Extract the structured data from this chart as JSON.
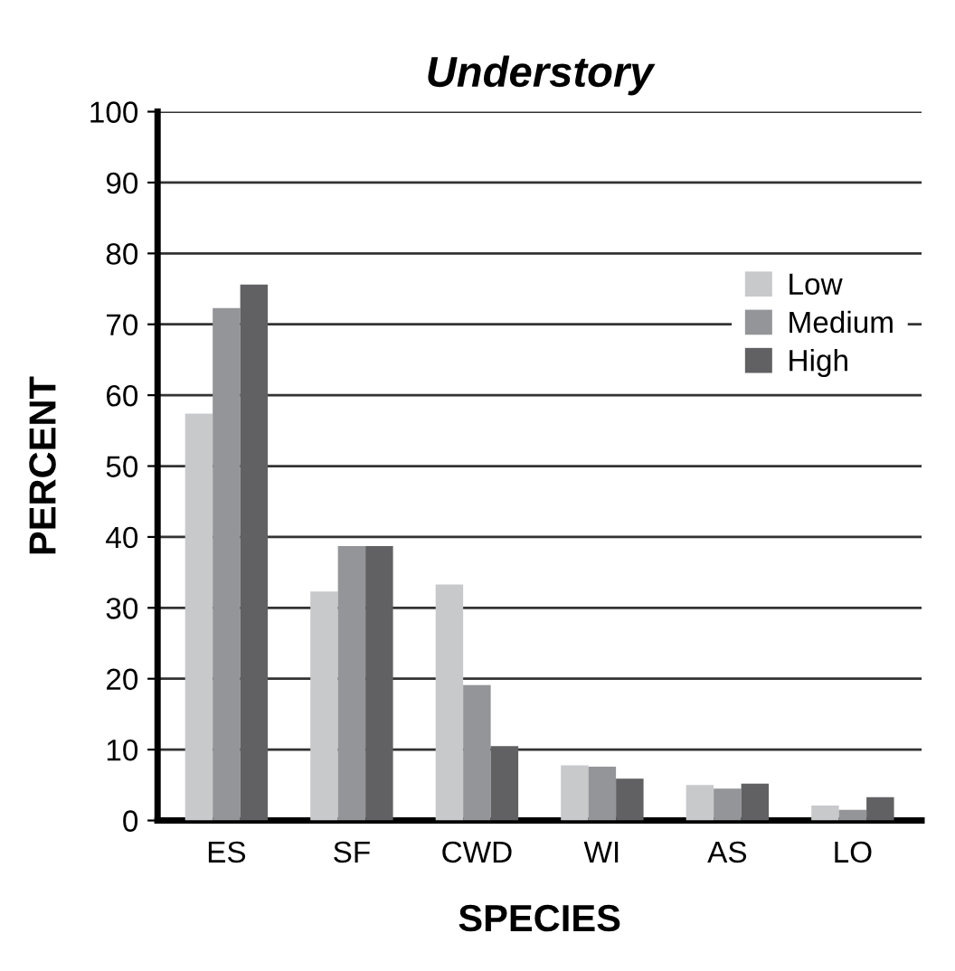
{
  "chart_data": {
    "type": "bar",
    "title": "Understory",
    "xlabel": "SPECIES",
    "ylabel": "PERCENT",
    "categories": [
      "ES",
      "SF",
      "CWD",
      "WI",
      "AS",
      "LO"
    ],
    "series": [
      {
        "name": "Low",
        "color": "#c8c9cb",
        "values": [
          57.4,
          32.3,
          33.3,
          7.8,
          5.0,
          2.1
        ]
      },
      {
        "name": "Medium",
        "color": "#939598",
        "values": [
          72.3,
          38.7,
          19.1,
          7.6,
          4.5,
          1.5
        ]
      },
      {
        "name": "High",
        "color": "#616163",
        "values": [
          75.6,
          38.7,
          10.5,
          5.9,
          5.2,
          3.3
        ]
      }
    ],
    "ylim": [
      0,
      100
    ],
    "yticks": [
      0,
      10,
      20,
      30,
      40,
      50,
      60,
      70,
      80,
      90,
      100
    ],
    "grid": "y",
    "legend": "right"
  }
}
